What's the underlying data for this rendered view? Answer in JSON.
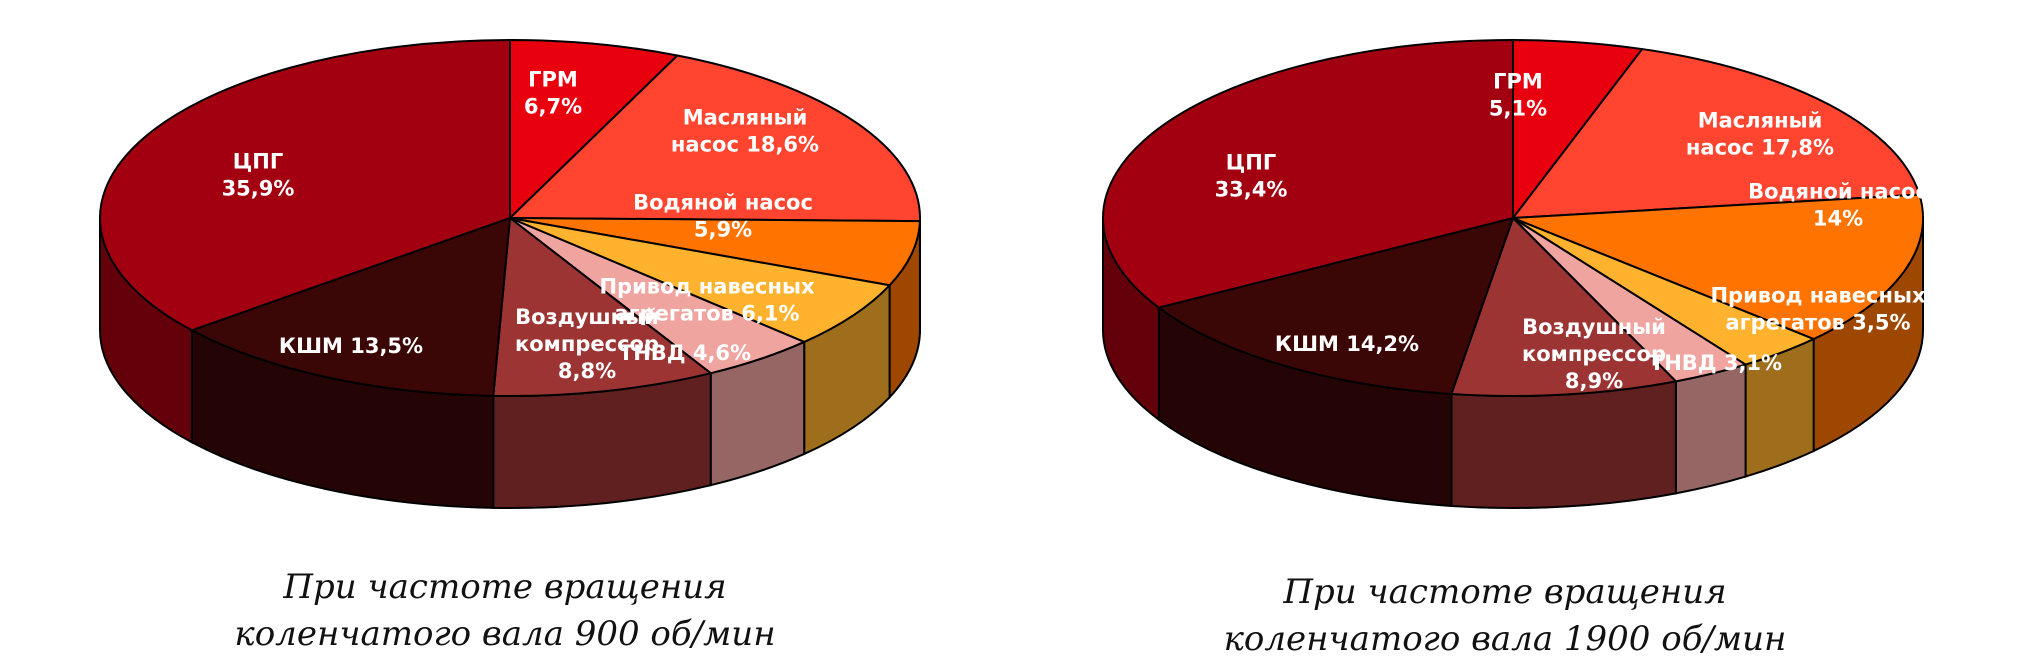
{
  "chart_data": [
    {
      "type": "pie",
      "unit": "%",
      "caption": [
        "При частоте вращения",
        "коленчатого вала 900 об/мин"
      ],
      "slices": [
        {
          "label": "ГРМ",
          "lines": [
            "ГРМ",
            "6,7%"
          ],
          "value": 6.7,
          "color": "#e8000e"
        },
        {
          "label": "Масляный насос",
          "lines": [
            "Масляный",
            "насос 18,6%"
          ],
          "value": 18.6,
          "color": "#ff4530"
        },
        {
          "label": "Водяной насос",
          "lines": [
            "Водяной насос",
            "5,9%"
          ],
          "value": 5.9,
          "color": "#ff7300"
        },
        {
          "label": "Привод навесных агрегатов",
          "lines": [
            "Привод навесных",
            "агрегатов 6,1%"
          ],
          "value": 6.1,
          "color": "#ffb22e"
        },
        {
          "label": "ТНВД",
          "lines": [
            "ТНВД 4,6%"
          ],
          "value": 4.6,
          "color": "#f0a4a0"
        },
        {
          "label": "Воздушный компрессор",
          "lines": [
            "Воздушный",
            "компрессор",
            "8,8%"
          ],
          "value": 8.8,
          "color": "#9c3434"
        },
        {
          "label": "КШМ",
          "lines": [
            "КШМ 13,5%"
          ],
          "value": 13.5,
          "color": "#3a0606"
        },
        {
          "label": "ЦПГ",
          "lines": [
            "ЦПГ",
            "35,9%"
          ],
          "value": 35.9,
          "color": "#a20010"
        }
      ]
    },
    {
      "type": "pie",
      "unit": "%",
      "caption": [
        "При частоте вращения",
        "коленчатого вала 1900 об/мин"
      ],
      "slices": [
        {
          "label": "ГРМ",
          "lines": [
            "ГРМ",
            "5,1%"
          ],
          "value": 5.1,
          "color": "#e8000e"
        },
        {
          "label": "Масляный насос",
          "lines": [
            "Масляный",
            "насос 17,8%"
          ],
          "value": 17.8,
          "color": "#ff4530"
        },
        {
          "label": "Водяной насос",
          "lines": [
            "Водяной насос",
            "14%"
          ],
          "value": 14,
          "color": "#ff7300"
        },
        {
          "label": "Привод навесных агрегатов",
          "lines": [
            "Привод навесных",
            "агрегатов 3,5%"
          ],
          "value": 3.5,
          "color": "#ffb22e"
        },
        {
          "label": "ТНВД",
          "lines": [
            "ТНВД 3,1%"
          ],
          "value": 3.1,
          "color": "#f0a4a0"
        },
        {
          "label": "Воздушный компрессор",
          "lines": [
            "Воздушный",
            "компрессор",
            "8,9%"
          ],
          "value": 8.9,
          "color": "#9c3434"
        },
        {
          "label": "КШМ",
          "lines": [
            "КШМ 14,2%"
          ],
          "value": 14.2,
          "color": "#3a0606"
        },
        {
          "label": "ЦПГ",
          "lines": [
            "ЦПГ",
            "33,4%"
          ],
          "value": 33.4,
          "color": "#a20010"
        }
      ]
    }
  ]
}
